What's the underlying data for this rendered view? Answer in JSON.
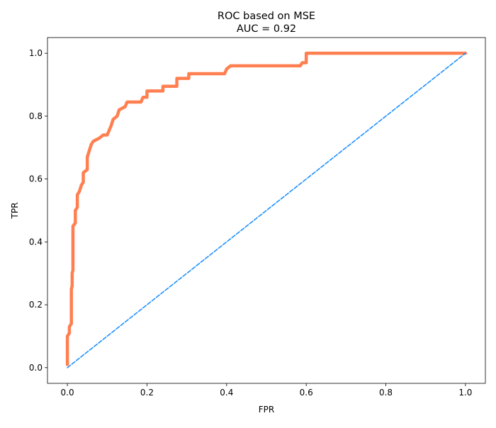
{
  "chart_data": {
    "type": "line",
    "title": "ROC based on MSE",
    "subtitle": "AUC = 0.92",
    "x_label": "FPR",
    "y_label": "TPR",
    "xlim": [
      -0.05,
      1.05
    ],
    "ylim": [
      -0.05,
      1.05
    ],
    "xticks": [
      {
        "value": 0,
        "label": "0.0"
      },
      0.2,
      0.4,
      0.6,
      0.8,
      {
        "value": 1,
        "label": "1.0"
      }
    ],
    "yticks": [
      {
        "value": 0,
        "label": "0.0"
      },
      0.2,
      0.4,
      0.6,
      0.8,
      {
        "value": 1,
        "label": "1.0"
      }
    ],
    "series": [
      {
        "color": "#ff7f50",
        "style": "solid",
        "x": [
          0,
          0,
          0.005,
          0.005,
          0.01,
          0.01,
          0.012,
          0.012,
          0.014,
          0.014,
          0.02,
          0.02,
          0.025,
          0.025,
          0.03,
          0.035,
          0.04,
          0.04,
          0.05,
          0.05,
          0.055,
          0.06,
          0.065,
          0.08,
          0.09,
          0.1,
          0.11,
          0.115,
          0.125,
          0.13,
          0.145,
          0.15,
          0.185,
          0.19,
          0.2,
          0.2,
          0.24,
          0.24,
          0.275,
          0.275,
          0.305,
          0.305,
          0.395,
          0.4,
          0.41,
          0.585,
          0.59,
          0.6,
          0.6,
          1
        ],
        "values": [
          0.01,
          0.1,
          0.11,
          0.13,
          0.14,
          0.25,
          0.26,
          0.3,
          0.31,
          0.45,
          0.46,
          0.5,
          0.51,
          0.55,
          0.56,
          0.58,
          0.59,
          0.62,
          0.63,
          0.67,
          0.69,
          0.71,
          0.72,
          0.73,
          0.74,
          0.74,
          0.77,
          0.79,
          0.8,
          0.82,
          0.83,
          0.845,
          0.845,
          0.86,
          0.86,
          0.88,
          0.88,
          0.895,
          0.895,
          0.92,
          0.92,
          0.935,
          0.935,
          0.95,
          0.96,
          0.96,
          0.97,
          0.97,
          1,
          1
        ]
      },
      {
        "color": "#1e90ff",
        "style": "dashed",
        "x": [
          0,
          1
        ],
        "values": [
          0,
          1
        ]
      }
    ]
  }
}
